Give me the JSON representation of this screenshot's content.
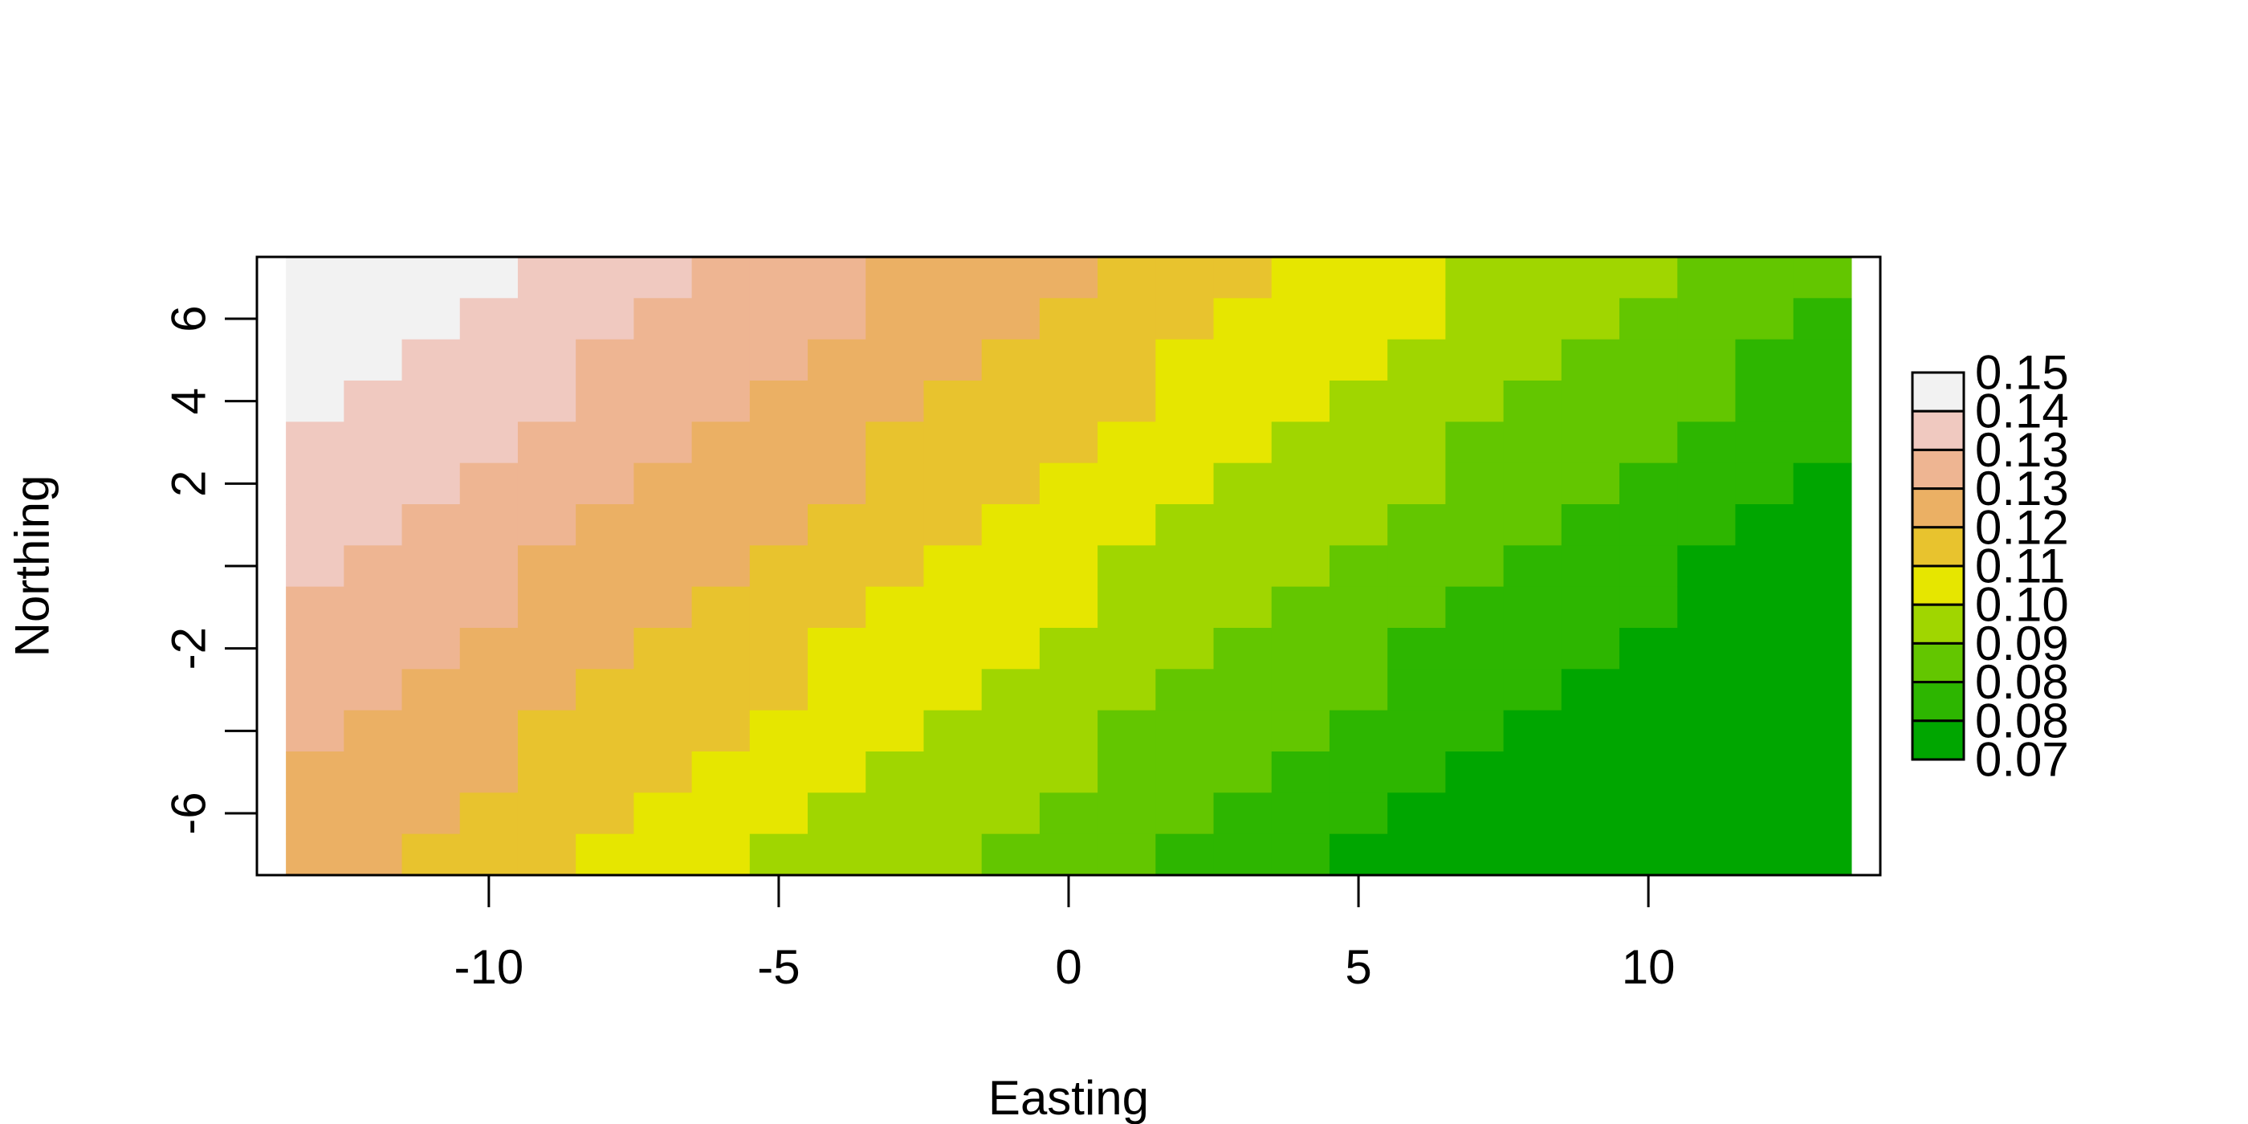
{
  "chart_data": {
    "type": "heatmap",
    "title": "",
    "xlabel": "Easting",
    "ylabel": "Northing",
    "x_ticks": [
      -10,
      -5,
      0,
      5,
      10
    ],
    "y_ticks": [
      -6,
      -4,
      -2,
      0,
      2,
      4,
      6
    ],
    "y_tick_labels": [
      "-6",
      "",
      "-2",
      "",
      "2",
      "4",
      "6"
    ],
    "xlim": [
      -14,
      14
    ],
    "ylim": [
      -7.5,
      7.5
    ],
    "cell_x_centers": [
      -13,
      -12,
      -11,
      -10,
      -9,
      -8,
      -7,
      -6,
      -5,
      -4,
      -3,
      -2,
      -1,
      0,
      1,
      2,
      3,
      4,
      5,
      6,
      7,
      8,
      9,
      10,
      11,
      12,
      13
    ],
    "cell_y_centers": [
      7,
      6,
      5,
      4,
      3,
      2,
      1,
      0,
      -1,
      -2,
      -3,
      -4,
      -5,
      -6,
      -7
    ],
    "classes": [
      {
        "label": "0.15",
        "color": "#F2F2F2"
      },
      {
        "label": "0.14",
        "color": "#F0C9C0"
      },
      {
        "label": "0.13",
        "color": "#EEB592"
      },
      {
        "label": "0.13",
        "color": "#EBB064"
      },
      {
        "label": "0.12",
        "color": "#E8C32E"
      },
      {
        "label": "0.11",
        "color": "#E6E600"
      },
      {
        "label": "0.10",
        "color": "#A0D600"
      },
      {
        "label": "0.09",
        "color": "#63C600"
      },
      {
        "label": "0.08",
        "color": "#2DB600"
      },
      {
        "label": "0.08",
        "color": "#00A600"
      },
      {
        "label": "0.07",
        "color": ""
      }
    ],
    "grid_class_index": [
      [
        0,
        0,
        0,
        0,
        1,
        1,
        1,
        1,
        1,
        1,
        2,
        2,
        2,
        2,
        2,
        2,
        3,
        3,
        3,
        3,
        3,
        3,
        4,
        4,
        4,
        4,
        4,
        4,
        4,
        4,
        4,
        4,
        4,
        4,
        5,
        5,
        5,
        5,
        5,
        5,
        6,
        6,
        6,
        6,
        6,
        6,
        6,
        6,
        7,
        7,
        7,
        7,
        7,
        7,
        7,
        7
      ],
      [
        0,
        0,
        1,
        1,
        1,
        1,
        2,
        2,
        2,
        2,
        2,
        2,
        3,
        3,
        3,
        3,
        3,
        3,
        4,
        4,
        4,
        4,
        4,
        4,
        5,
        5,
        5,
        5,
        5,
        5,
        6,
        6,
        6,
        6,
        6,
        6,
        7,
        7,
        7,
        7,
        7,
        7,
        7,
        7,
        8,
        8,
        8,
        8,
        8,
        8,
        8,
        8
      ],
      [
        0,
        1,
        1,
        1,
        1,
        2,
        2,
        2,
        2,
        2,
        3,
        3,
        3,
        3,
        3,
        4,
        4,
        4,
        4,
        4,
        5,
        5,
        5,
        5,
        5,
        6,
        6,
        6,
        6,
        6,
        7,
        7,
        7,
        7,
        7,
        8,
        8,
        8,
        8,
        8
      ]
    ],
    "legend_position": "right"
  }
}
